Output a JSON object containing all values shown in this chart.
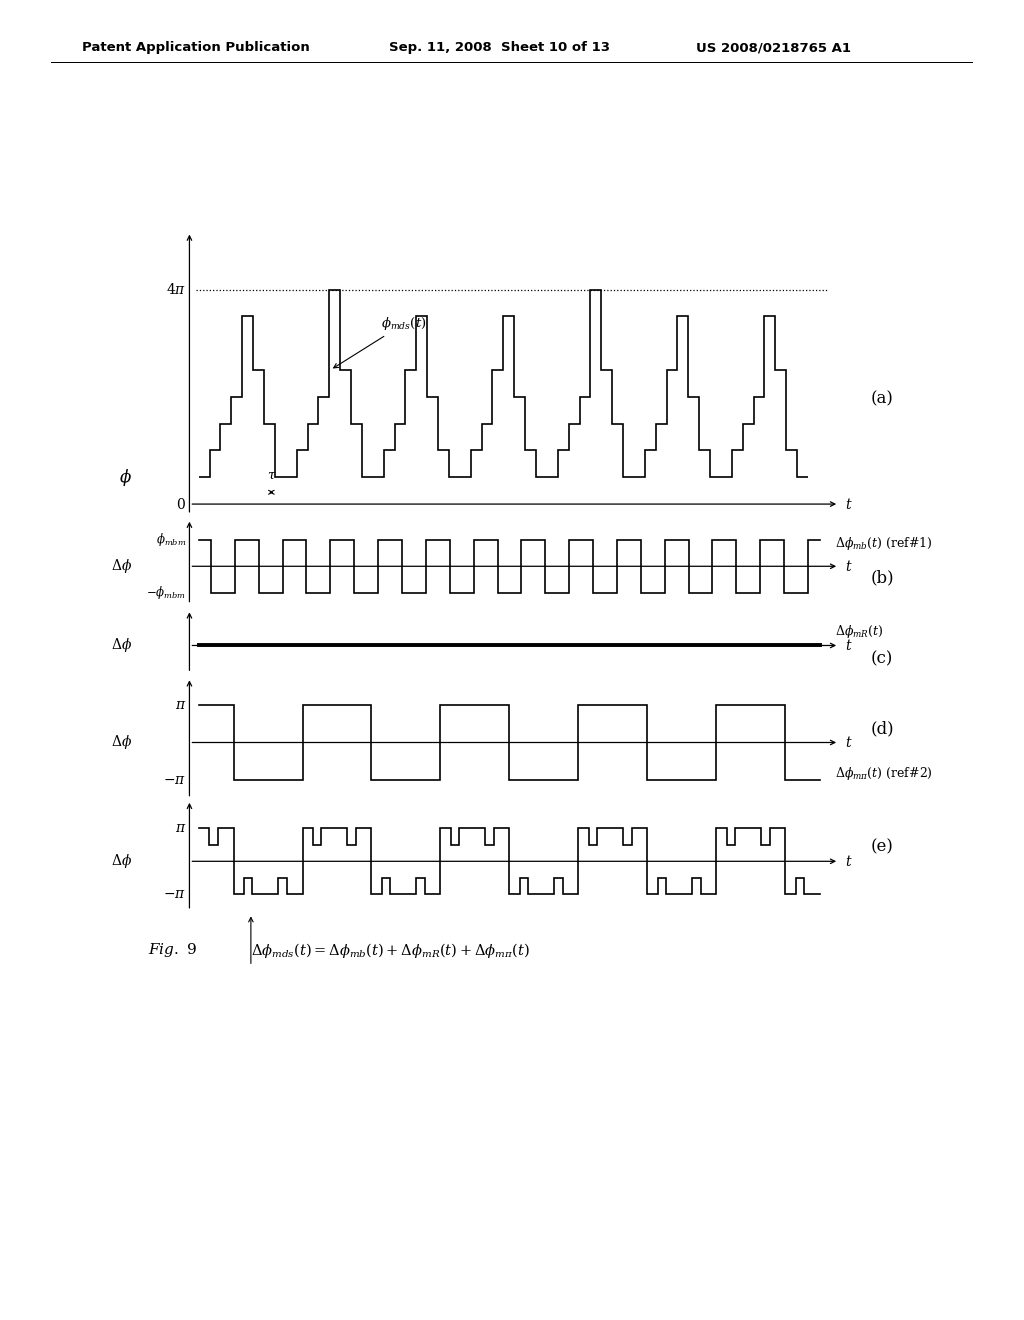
{
  "header_left": "Patent Application Publication",
  "header_mid": "Sep. 11, 2008  Sheet 10 of 13",
  "header_right": "US 2008/0218765 A1",
  "fig_label": "Fig. 9",
  "bg_color": "#ffffff",
  "line_color": "#000000",
  "label_a": "(a)",
  "label_b": "(b)",
  "label_c": "(c)",
  "label_d": "(d)",
  "label_e": "(e)"
}
